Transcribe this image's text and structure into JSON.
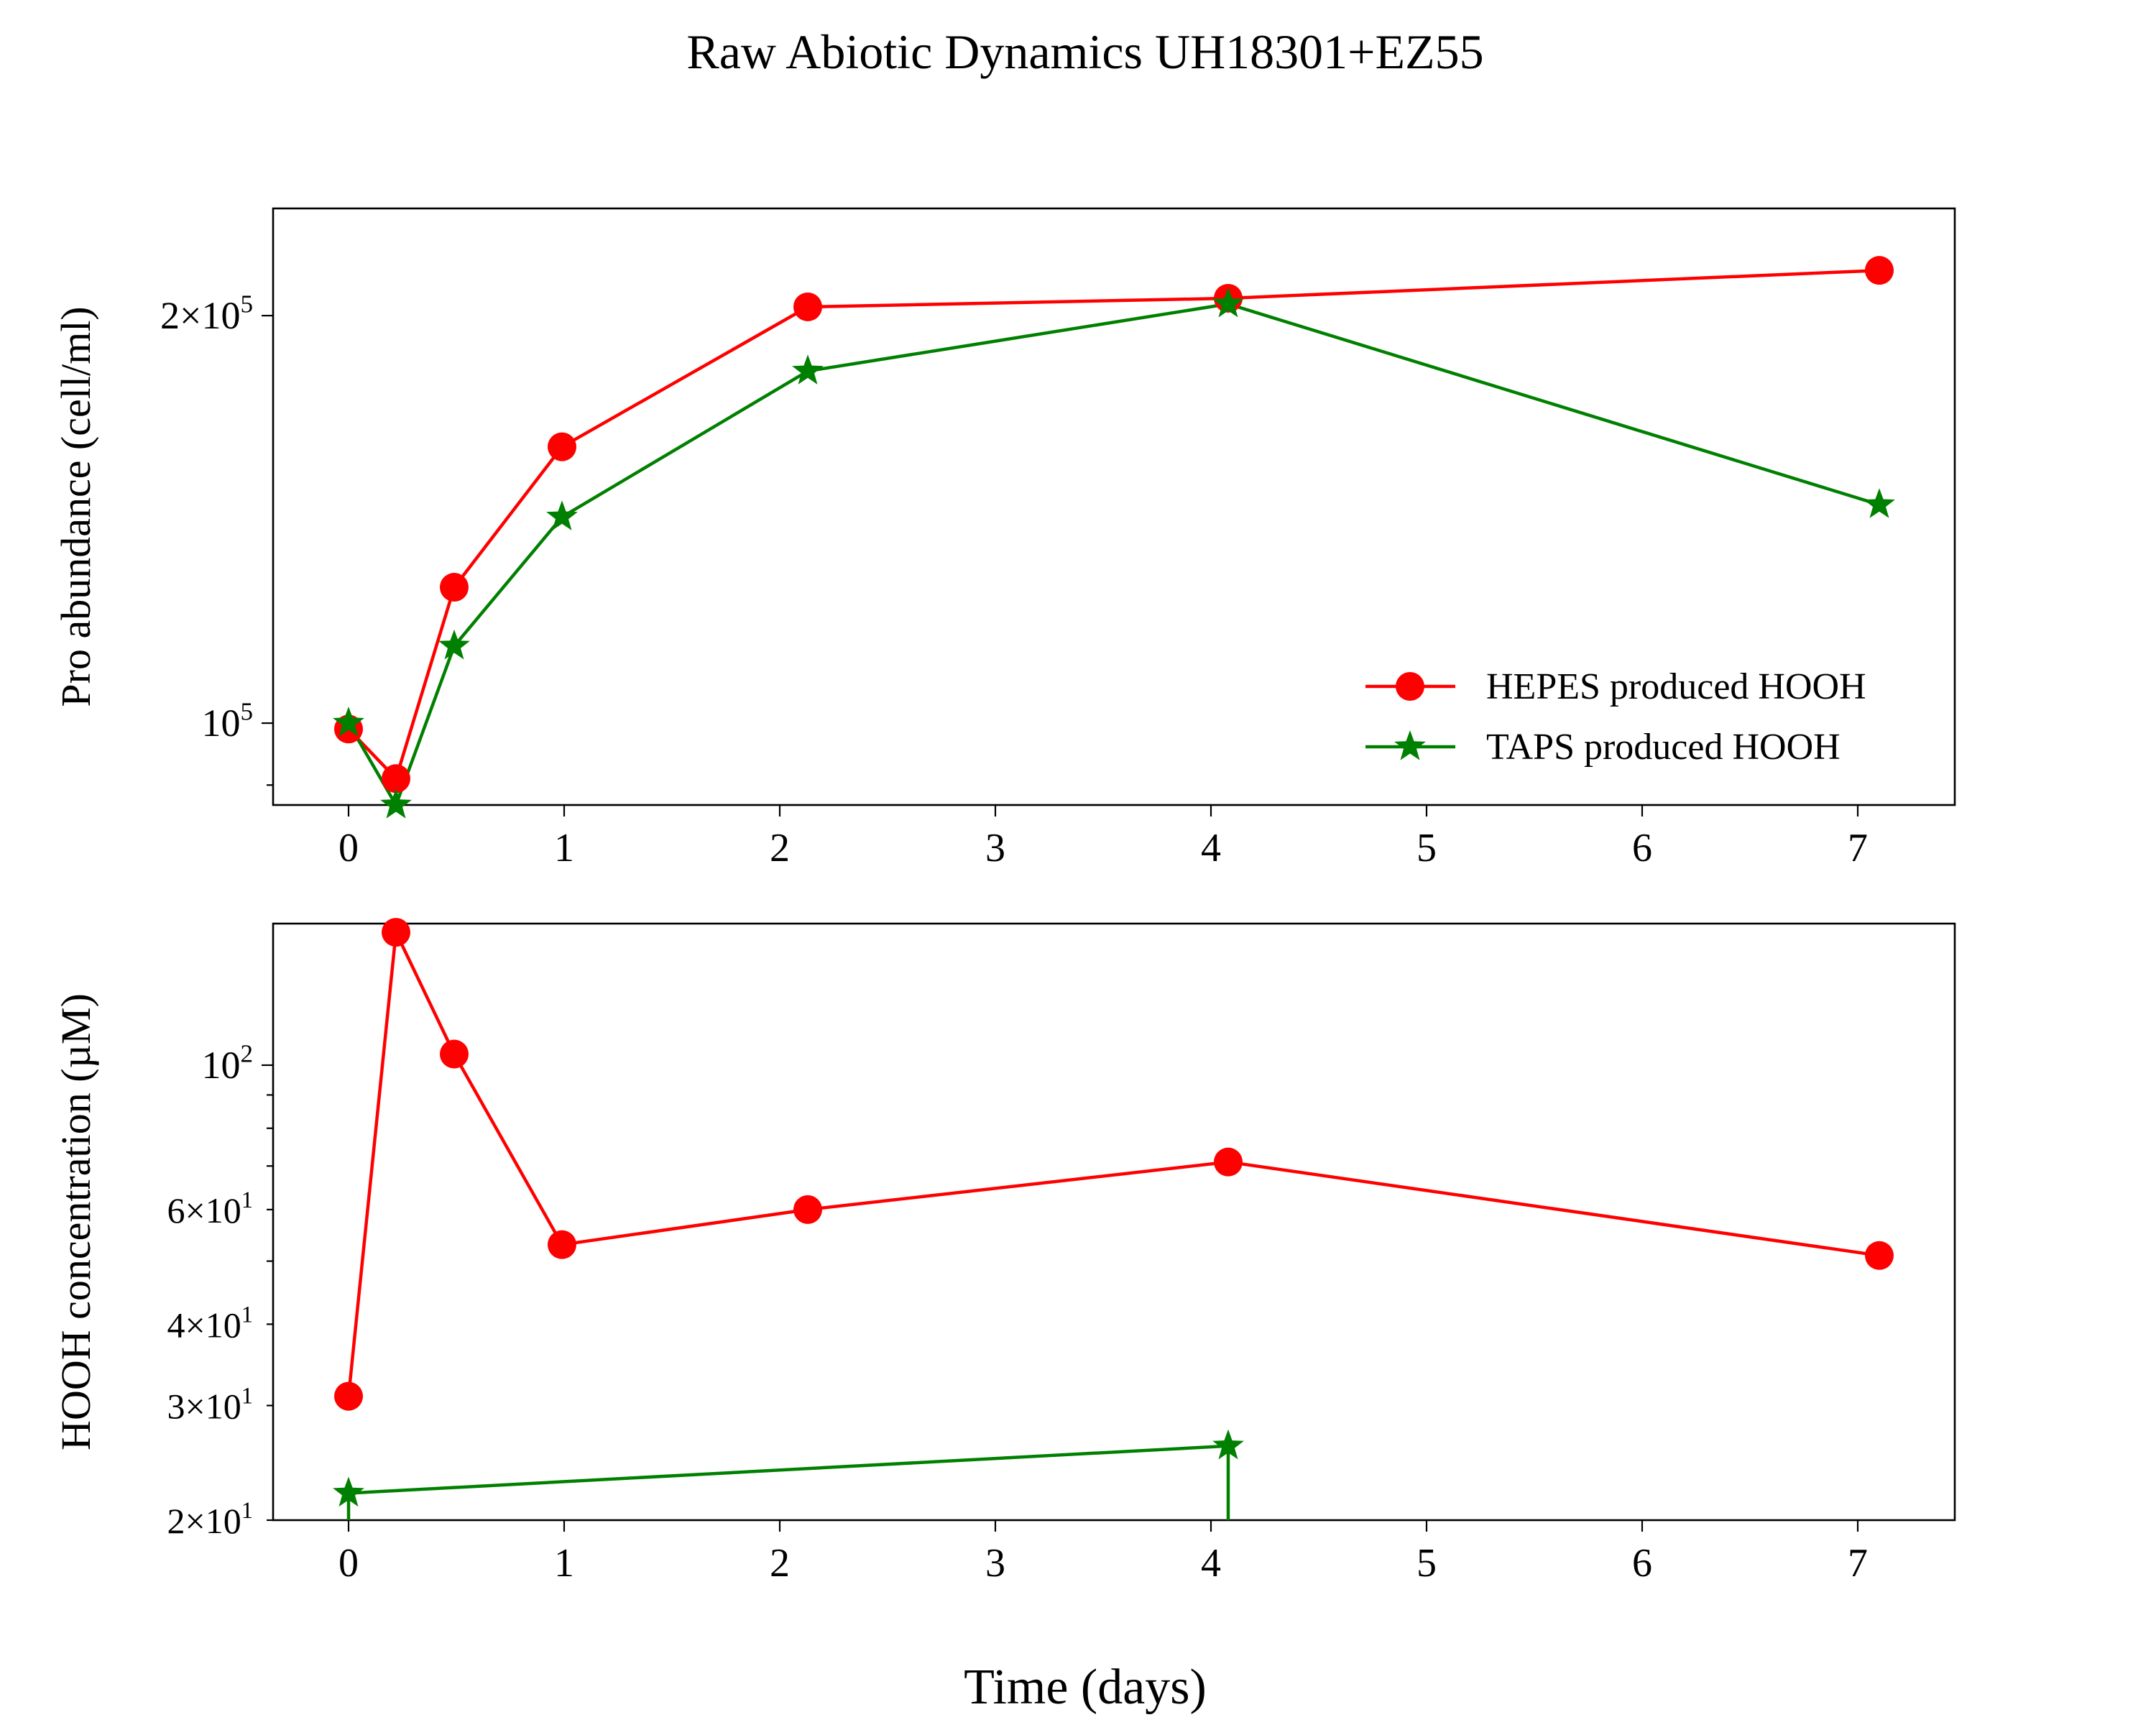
{
  "figure": {
    "title": "Raw Abiotic Dynamics UH18301+EZ55",
    "xlabel": "Time (days)"
  },
  "chart_data": [
    {
      "type": "line",
      "panel": "top",
      "ylabel": "Pro abundance (cell/ml)",
      "yscale": "log",
      "xlim": [
        -0.35,
        7.45
      ],
      "ylim": [
        87000,
        240000
      ],
      "x_ticks": [
        "0",
        "1",
        "2",
        "3",
        "4",
        "5",
        "6",
        "7"
      ],
      "y_ticks_major": [
        {
          "value": 100000,
          "base": "10",
          "exp": "5",
          "mantissa": ""
        },
        {
          "value": 200000,
          "base": "10",
          "exp": "5",
          "mantissa": "2"
        }
      ],
      "y_ticks_minor": [
        90000,
        300000
      ],
      "legend": {
        "position": "lower-right"
      },
      "series": [
        {
          "name": "HEPES produced HOOH",
          "color": "#ff0000",
          "marker": "circle",
          "x": [
            0.0,
            0.22,
            0.49,
            0.99,
            2.13,
            4.08,
            7.1
          ],
          "y": [
            99000,
            91000,
            126000,
            160000,
            203000,
            206000,
            216000
          ]
        },
        {
          "name": "TAPS produced HOOH",
          "color": "#008000",
          "marker": "star",
          "x": [
            0.0,
            0.22,
            0.49,
            0.99,
            2.13,
            4.08,
            7.1
          ],
          "y": [
            100000,
            87000,
            114000,
            142000,
            182000,
            204000,
            145000
          ]
        }
      ]
    },
    {
      "type": "line",
      "panel": "bottom",
      "ylabel": "HOOH concentration (µM)",
      "yscale": "log",
      "xlim": [
        -0.35,
        7.45
      ],
      "ylim": [
        20,
        165
      ],
      "x_ticks": [
        "0",
        "1",
        "2",
        "3",
        "4",
        "5",
        "6",
        "7"
      ],
      "y_ticks_major": [
        {
          "value": 100,
          "base": "10",
          "exp": "2",
          "mantissa": ""
        }
      ],
      "y_ticks_minor": [
        {
          "value": 20,
          "base": "10",
          "exp": "1",
          "mantissa": "2"
        },
        {
          "value": 30,
          "base": "10",
          "exp": "1",
          "mantissa": "3"
        },
        {
          "value": 40,
          "base": "10",
          "exp": "1",
          "mantissa": "4"
        },
        {
          "value": 50,
          "base": "",
          "exp": "",
          "mantissa": ""
        },
        {
          "value": 60,
          "base": "10",
          "exp": "1",
          "mantissa": "6"
        },
        {
          "value": 70,
          "base": "",
          "exp": "",
          "mantissa": ""
        },
        {
          "value": 80,
          "base": "",
          "exp": "",
          "mantissa": ""
        },
        {
          "value": 90,
          "base": "",
          "exp": "",
          "mantissa": ""
        }
      ],
      "series": [
        {
          "name": "HEPES produced HOOH",
          "color": "#ff0000",
          "marker": "circle",
          "x": [
            0.0,
            0.22,
            0.49,
            0.99,
            2.13,
            4.08,
            7.1
          ],
          "y": [
            31,
            160,
            104,
            53,
            60,
            71,
            51
          ]
        },
        {
          "name": "TAPS produced HOOH",
          "color": "#008000",
          "marker": "star",
          "x": [
            0.0,
            4.08
          ],
          "y": [
            22,
            26
          ],
          "note_values_below_axis": [
            0.0,
            4.08
          ]
        }
      ]
    }
  ]
}
